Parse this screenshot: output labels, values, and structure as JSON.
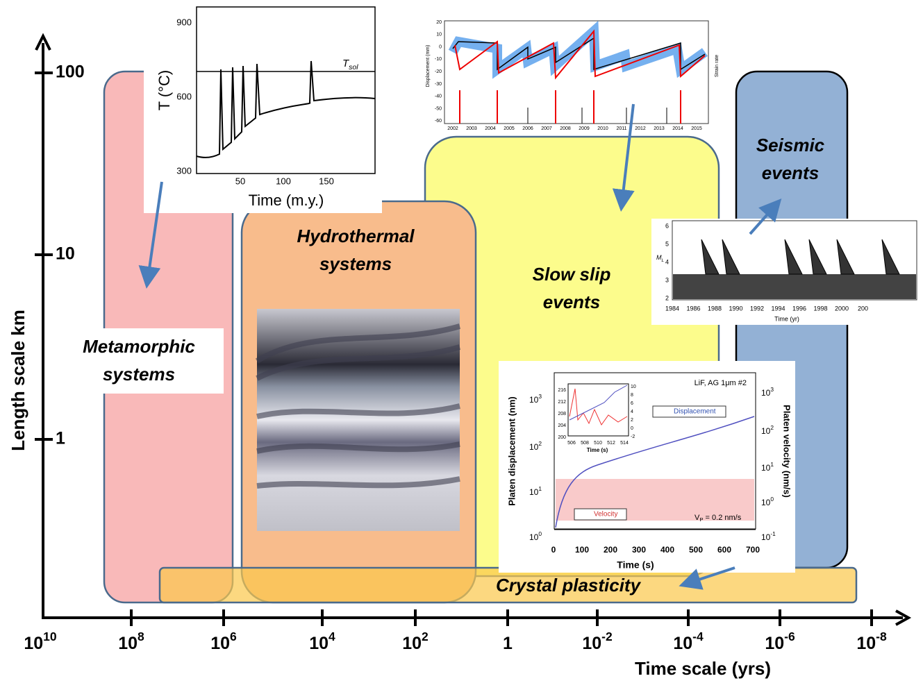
{
  "axes": {
    "y_label": "Length scale km",
    "x_label": "Time scale (yrs)",
    "y_ticks": [
      "100",
      "10",
      "1"
    ],
    "x_ticks": [
      {
        "base": "10",
        "exp": "10"
      },
      {
        "base": "10",
        "exp": "8"
      },
      {
        "base": "10",
        "exp": "6"
      },
      {
        "base": "10",
        "exp": "4"
      },
      {
        "base": "10",
        "exp": "2"
      },
      {
        "base": "1"
      },
      {
        "base": "10",
        "exp": "-2"
      },
      {
        "base": "10",
        "exp": "-4"
      },
      {
        "base": "10",
        "exp": "-6"
      },
      {
        "base": "10",
        "exp": "-8"
      }
    ]
  },
  "regions": {
    "metamorphic": [
      "Metamorphic",
      "systems"
    ],
    "hydrothermal": [
      "Hydrothermal",
      "systems"
    ],
    "slow_slip": [
      "Slow slip",
      "events"
    ],
    "seismic": [
      "Seismic",
      "events"
    ],
    "crystal": "Crystal plasticity"
  },
  "inset_temperature": {
    "y_label": "T (°C)",
    "x_label": "Time  (m.y.)",
    "y_ticks": [
      "900",
      "600",
      "300"
    ],
    "x_ticks": [
      "50",
      "100",
      "150"
    ],
    "line_label": {
      "base": "T",
      "sub": "sol"
    }
  },
  "inset_slow_slip": {
    "y_label": "Displacement (mm)",
    "y2_label": "Strain rate",
    "y_ticks": [
      "20",
      "10",
      "0",
      "-10",
      "-20",
      "-30",
      "-40",
      "-50",
      "-60"
    ],
    "x_ticks": [
      "2002",
      "2003",
      "2004",
      "2005",
      "2006",
      "2007",
      "2008",
      "2009",
      "2010",
      "2011",
      "2012",
      "2013",
      "2014",
      "2015"
    ]
  },
  "inset_seismic": {
    "y_label": {
      "base": "M",
      "sub": "L"
    },
    "x_label": "Time (yr)",
    "y_ticks": [
      "6",
      "5",
      "4",
      "3",
      "2"
    ],
    "x_ticks": [
      "1984",
      "1986",
      "1988",
      "1990",
      "1992",
      "1994",
      "1996",
      "1998",
      "2000",
      "200"
    ]
  },
  "inset_plasticity": {
    "title": "LiF, AG 1μm #2",
    "y_label": "Platen displacement (nm)",
    "y2_label": "Platen velocity  (nm/s)",
    "x_label": "Time  (s)",
    "x_ticks": [
      "0",
      "100",
      "200",
      "300",
      "400",
      "500",
      "600",
      "700"
    ],
    "y_ticks": [
      {
        "base": "10",
        "exp": "3"
      },
      {
        "base": "10",
        "exp": "2"
      },
      {
        "base": "10",
        "exp": "1"
      },
      {
        "base": "10",
        "exp": "0"
      }
    ],
    "y2_ticks": [
      {
        "base": "10",
        "exp": "3"
      },
      {
        "base": "10",
        "exp": "2"
      },
      {
        "base": "10",
        "exp": "1"
      },
      {
        "base": "10",
        "exp": "0"
      },
      {
        "base": "10",
        "exp": "-1"
      }
    ],
    "legend": [
      "Displacement",
      "Velocity"
    ],
    "note": {
      "base": "V",
      "sub": "P",
      "rest": " = 0.2 nm/s"
    },
    "sub_y_ticks": [
      "216",
      "212",
      "208",
      "204",
      "200"
    ],
    "sub_y2_ticks": [
      "10",
      "8",
      "6",
      "4",
      "2",
      "0",
      "-2"
    ],
    "sub_x_ticks": [
      "506",
      "508",
      "510",
      "512",
      "514"
    ],
    "sub_x_label": "Time (s)"
  }
}
